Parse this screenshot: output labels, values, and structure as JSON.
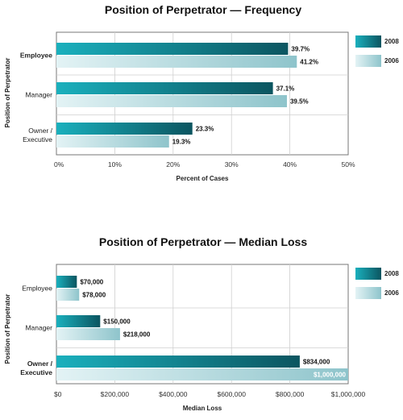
{
  "chart_data": [
    {
      "type": "bar",
      "orientation": "horizontal",
      "title": "Position of Perpetrator — Frequency",
      "xlabel": "Percent of Cases",
      "ylabel": "Position of Perpetrator",
      "categories": [
        "Employee",
        "Manager",
        "Owner / Executive"
      ],
      "category_lines": [
        [
          "Employee"
        ],
        [
          "Manager"
        ],
        [
          "Owner /",
          "Executive"
        ]
      ],
      "highlight_category": "Employee",
      "series": [
        {
          "name": "2008",
          "values": [
            39.7,
            37.1,
            23.3
          ],
          "labels": [
            "39.7%",
            "37.1%",
            "23.3%"
          ]
        },
        {
          "name": "2006",
          "values": [
            41.2,
            39.5,
            19.3
          ],
          "labels": [
            "41.2%",
            "39.5%",
            "19.3%"
          ]
        }
      ],
      "xlim": [
        0,
        50
      ],
      "xticks": [
        0,
        10,
        20,
        30,
        40,
        50
      ],
      "xtick_labels": [
        "0%",
        "10%",
        "20%",
        "30%",
        "40%",
        "50%"
      ],
      "grid": true,
      "legend_position": "right"
    },
    {
      "type": "bar",
      "orientation": "horizontal",
      "title": "Position of Perpetrator — Median Loss",
      "xlabel": "Median Loss",
      "ylabel": "Position of Perpetrator",
      "categories": [
        "Employee",
        "Manager",
        "Owner / Executive"
      ],
      "category_lines": [
        [
          "Employee"
        ],
        [
          "Manager"
        ],
        [
          "Owner /",
          "Executive"
        ]
      ],
      "highlight_category": "Owner / Executive",
      "series": [
        {
          "name": "2008",
          "values": [
            70000,
            150000,
            834000
          ],
          "labels": [
            "$70,000",
            "$150,000",
            "$834,000"
          ]
        },
        {
          "name": "2006",
          "values": [
            78000,
            218000,
            1000000
          ],
          "labels": [
            "$78,000",
            "$218,000",
            "$1,000,000"
          ]
        }
      ],
      "xlim": [
        0,
        1000000
      ],
      "xticks": [
        0,
        200000,
        400000,
        600000,
        800000,
        1000000
      ],
      "xtick_labels": [
        "$0",
        "$200,000",
        "$400,000",
        "$600,000",
        "$800,000",
        "$1,000,000"
      ],
      "grid": true,
      "legend_position": "right"
    }
  ],
  "colors": {
    "series_2008": "#0f6d78",
    "series_2006": "#9fd0d6"
  }
}
